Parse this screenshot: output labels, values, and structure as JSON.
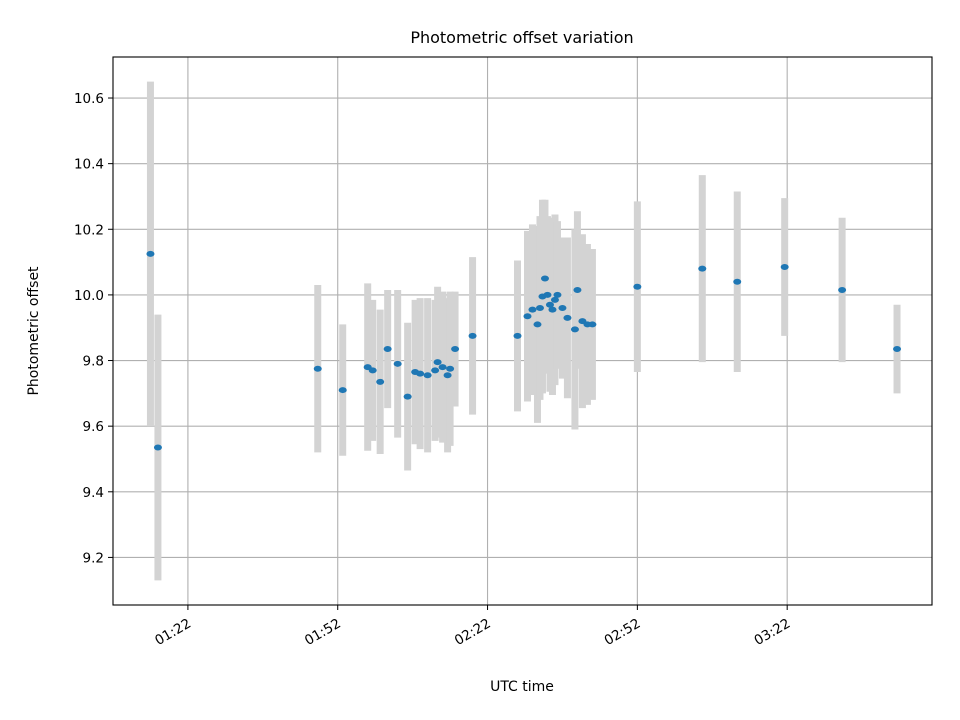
{
  "chart_data": {
    "type": "scatter",
    "title": "Photometric offset variation",
    "xlabel": "UTC time",
    "ylabel": "Photometric offset",
    "xlim": [
      "01:07",
      "03:51"
    ],
    "ylim": [
      9.055,
      10.725
    ],
    "grid": true,
    "colors": {
      "points": "#1f77b4",
      "errorbars": "#d3d3d3",
      "grid": "#b0b0b0"
    },
    "x_ticks": [
      "01:22",
      "01:52",
      "02:22",
      "02:52",
      "03:22"
    ],
    "y_ticks": [
      "9.2",
      "9.4",
      "9.6",
      "9.8",
      "10.0",
      "10.2",
      "10.4",
      "10.6"
    ],
    "series": [
      {
        "x": [
          "01:14:30",
          "01:16:00",
          "01:48:00",
          "01:53:00",
          "01:58:00",
          "01:59:00",
          "02:00:30",
          "02:02:00",
          "02:04:00",
          "02:06:00",
          "02:07:30",
          "02:08:30",
          "02:10:00",
          "02:11:30",
          "02:12:00",
          "02:13:00",
          "02:14:00",
          "02:14:30",
          "02:15:30",
          "02:19:00",
          "02:28:00",
          "02:30:00",
          "02:31:00",
          "02:32:00",
          "02:32:30",
          "02:33:00",
          "02:33:30",
          "02:34:00",
          "02:34:30",
          "02:35:00",
          "02:35:30",
          "02:36:00",
          "02:37:00",
          "02:38:00",
          "02:39:30",
          "02:40:00",
          "02:41:00",
          "02:42:00",
          "02:43:00",
          "02:52:00",
          "03:05:00",
          "03:12:00",
          "03:21:30",
          "03:33:00",
          "03:44:00"
        ],
        "y": [
          10.125,
          9.535,
          9.775,
          9.71,
          9.78,
          9.77,
          9.735,
          9.835,
          9.79,
          9.69,
          9.765,
          9.76,
          9.755,
          9.77,
          9.795,
          9.78,
          9.755,
          9.775,
          9.835,
          9.875,
          9.875,
          9.935,
          9.955,
          9.91,
          9.96,
          9.995,
          10.05,
          10.0,
          9.97,
          9.955,
          9.985,
          10.0,
          9.96,
          9.93,
          9.895,
          10.015,
          9.92,
          9.91,
          9.91,
          10.025,
          10.08,
          10.04,
          10.085,
          10.015,
          9.835
        ],
        "err": [
          0.525,
          0.405,
          0.255,
          0.2,
          0.255,
          0.215,
          0.22,
          0.18,
          0.225,
          0.225,
          0.22,
          0.23,
          0.235,
          0.215,
          0.23,
          0.23,
          0.235,
          0.235,
          0.175,
          0.24,
          0.23,
          0.26,
          0.26,
          0.3,
          0.28,
          0.295,
          0.24,
          0.24,
          0.265,
          0.26,
          0.26,
          0.225,
          0.215,
          0.245,
          0.305,
          0.24,
          0.265,
          0.245,
          0.23,
          0.26,
          0.285,
          0.275,
          0.21,
          0.22,
          0.135
        ]
      }
    ]
  }
}
